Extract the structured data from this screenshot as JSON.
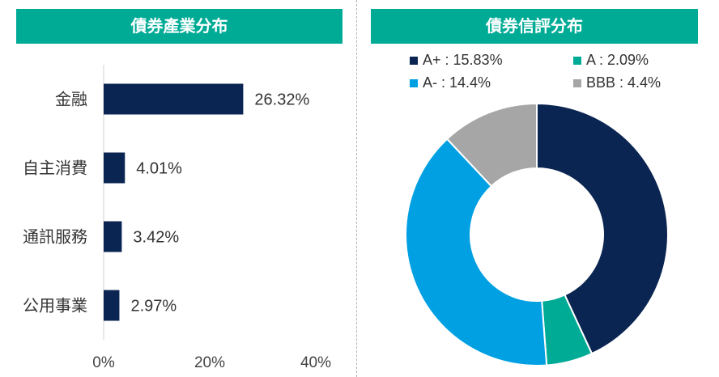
{
  "left_panel": {
    "title": "債券產業分布"
  },
  "right_panel": {
    "title": "債券信評分布"
  },
  "chart_data": [
    {
      "type": "bar",
      "orientation": "horizontal",
      "title": "債券產業分布",
      "categories": [
        "金融",
        "自主消費",
        "通訊服務",
        "公用事業"
      ],
      "values": [
        26.32,
        4.01,
        3.42,
        2.97
      ],
      "value_labels": [
        "26.32%",
        "4.01%",
        "3.42%",
        "2.97%"
      ],
      "xlim": [
        0,
        40
      ],
      "x_ticks": [
        "0%",
        "20%",
        "40%"
      ],
      "grid": false,
      "color": "#0b2552"
    },
    {
      "type": "pie",
      "style": "donut",
      "title": "債券信評分布",
      "legend_position": "top",
      "slices": [
        {
          "label": "A+ : 15.83%",
          "value": 15.83,
          "color": "#0b2552"
        },
        {
          "label": "A : 2.09%",
          "value": 2.09,
          "color": "#00ab96"
        },
        {
          "label": "A- : 14.4%",
          "value": 14.4,
          "color": "#00a0e3"
        },
        {
          "label": "BBB : 4.4%",
          "value": 4.4,
          "color": "#a6a6a6"
        }
      ]
    }
  ]
}
